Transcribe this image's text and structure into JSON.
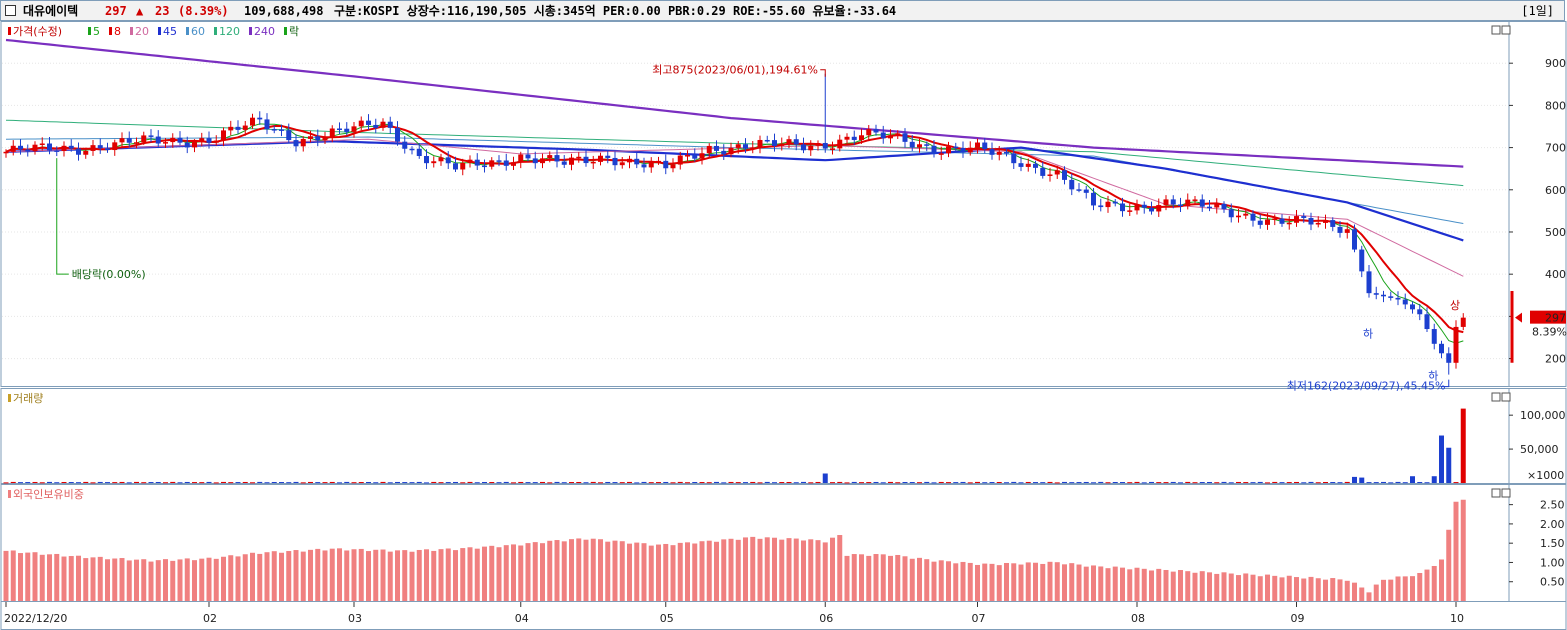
{
  "header": {
    "name": "대유에이텍",
    "price": "297",
    "change_arrow": "▲",
    "change": "23",
    "change_pct": "(8.39%)",
    "volume": "109,688,498",
    "info": "구분:KOSPI  상장수:116,190,505  시총:345억  PER:0.00  PBR:0.29  ROE:-55.60  유보율:-33.64",
    "period": "[1일]"
  },
  "legend": {
    "price_label": "가격(수정)",
    "ma": [
      {
        "label": "5",
        "color": "#1aa31a"
      },
      {
        "label": "8",
        "color": "#e00000"
      },
      {
        "label": "20",
        "color": "#d06aa0"
      },
      {
        "label": "45",
        "color": "#1e2fd0"
      },
      {
        "label": "60",
        "color": "#4a90c8"
      },
      {
        "label": "120",
        "color": "#2fae7a"
      },
      {
        "label": "240",
        "color": "#7a2fc0"
      }
    ],
    "ex_label": "락",
    "volume_label": "거래량",
    "foreign_label": "외국인보유비중"
  },
  "annotations": {
    "high": "최고875(2023/06/01),194.61%",
    "low": "최저162(2023/09/27),45.45%",
    "dividend": "배당락(0.00%)",
    "limit_down": "하",
    "limit_up": "상",
    "last_price": "297",
    "last_pct": "8.39%"
  },
  "chart_data": [
    {
      "type": "candlestick",
      "title": "가격(수정)",
      "y_ticks": [
        200,
        300,
        400,
        500,
        600,
        700,
        800,
        900
      ],
      "ylim": [
        135,
        1000
      ],
      "x_labels": [
        "2022/12/20",
        "02",
        "03",
        "04",
        "05",
        "06",
        "07",
        "08",
        "09",
        "10"
      ],
      "x_label_index": [
        0,
        28,
        48,
        71,
        91,
        113,
        134,
        156,
        178,
        200
      ],
      "price_anchors": [
        [
          0,
          690
        ],
        [
          10,
          700
        ],
        [
          20,
          715
        ],
        [
          28,
          720
        ],
        [
          35,
          760
        ],
        [
          40,
          720
        ],
        [
          46,
          735
        ],
        [
          52,
          760
        ],
        [
          57,
          680
        ],
        [
          62,
          650
        ],
        [
          71,
          680
        ],
        [
          77,
          660
        ],
        [
          83,
          680
        ],
        [
          91,
          650
        ],
        [
          97,
          700
        ],
        [
          103,
          705
        ],
        [
          110,
          705
        ],
        [
          113,
          710
        ],
        [
          118,
          730
        ],
        [
          123,
          720
        ],
        [
          128,
          700
        ],
        [
          134,
          695
        ],
        [
          140,
          665
        ],
        [
          145,
          640
        ],
        [
          150,
          560
        ],
        [
          155,
          560
        ],
        [
          160,
          570
        ],
        [
          165,
          560
        ],
        [
          170,
          545
        ],
        [
          175,
          525
        ],
        [
          180,
          520
        ],
        [
          185,
          510
        ],
        [
          188,
          355
        ],
        [
          192,
          340
        ],
        [
          195,
          305
        ],
        [
          197,
          235
        ],
        [
          199,
          190
        ],
        [
          200,
          275
        ],
        [
          201,
          297
        ]
      ],
      "series": [
        {
          "name": "240",
          "anchors": [
            [
              0,
              955
            ],
            [
              50,
              865
            ],
            [
              100,
              770
            ],
            [
              150,
              700
            ],
            [
              201,
              655
            ]
          ]
        },
        {
          "name": "120",
          "anchors": [
            [
              0,
              765
            ],
            [
              50,
              735
            ],
            [
              100,
              710
            ],
            [
              150,
              690
            ],
            [
              201,
              610
            ]
          ]
        },
        {
          "name": "60",
          "anchors": [
            [
              0,
              720
            ],
            [
              50,
              725
            ],
            [
              100,
              700
            ],
            [
              150,
              680
            ],
            [
              201,
              520
            ]
          ]
        },
        {
          "name": "45",
          "anchors": [
            [
              0,
              690
            ],
            [
              45,
              715
            ],
            [
              80,
              695
            ],
            [
              113,
              670
            ],
            [
              140,
              700
            ],
            [
              160,
              650
            ],
            [
              185,
              570
            ],
            [
              201,
              480
            ]
          ]
        },
        {
          "name": "20",
          "anchors": [
            [
              0,
              690
            ],
            [
              50,
              720
            ],
            [
              71,
              685
            ],
            [
              113,
              705
            ],
            [
              140,
              690
            ],
            [
              160,
              565
            ],
            [
              185,
              530
            ],
            [
              201,
              395
            ]
          ]
        }
      ],
      "high_point": {
        "index": 113,
        "value": 875
      },
      "low_point": {
        "index": 199,
        "value": 162
      }
    },
    {
      "type": "bar",
      "title": "거래량",
      "y_ticks": [
        50000,
        100000
      ],
      "y_tick_labels": [
        "50,000",
        "100,000"
      ],
      "unit": "×1000",
      "ylim": [
        0,
        115000
      ],
      "spikes": [
        [
          113,
          14000
        ],
        [
          186,
          9000
        ],
        [
          187,
          8000
        ],
        [
          194,
          10000
        ],
        [
          197,
          10000
        ],
        [
          198,
          70000
        ],
        [
          199,
          52000
        ],
        [
          201,
          109688
        ]
      ]
    },
    {
      "type": "bar",
      "title": "외국인보유비중",
      "y_ticks": [
        0.5,
        1.0,
        1.5,
        2.0,
        2.5
      ],
      "y_tick_labels": [
        "0.50",
        "1.00",
        "1.50",
        "2.00",
        "2.50"
      ],
      "ylim": [
        0,
        2.75
      ],
      "anchors": [
        [
          0,
          1.3
        ],
        [
          10,
          1.15
        ],
        [
          20,
          1.05
        ],
        [
          28,
          1.1
        ],
        [
          35,
          1.25
        ],
        [
          45,
          1.35
        ],
        [
          55,
          1.3
        ],
        [
          62,
          1.35
        ],
        [
          70,
          1.45
        ],
        [
          75,
          1.55
        ],
        [
          80,
          1.62
        ],
        [
          90,
          1.45
        ],
        [
          97,
          1.55
        ],
        [
          103,
          1.65
        ],
        [
          110,
          1.6
        ],
        [
          113,
          1.55
        ],
        [
          115,
          1.7
        ],
        [
          116,
          1.2
        ],
        [
          122,
          1.2
        ],
        [
          128,
          1.05
        ],
        [
          135,
          0.95
        ],
        [
          145,
          1.0
        ],
        [
          150,
          0.9
        ],
        [
          155,
          0.85
        ],
        [
          165,
          0.75
        ],
        [
          175,
          0.65
        ],
        [
          185,
          0.55
        ],
        [
          188,
          0.25
        ],
        [
          190,
          0.55
        ],
        [
          195,
          0.7
        ],
        [
          198,
          1.05
        ],
        [
          199,
          1.85
        ],
        [
          200,
          2.6
        ],
        [
          201,
          2.6
        ]
      ]
    }
  ]
}
